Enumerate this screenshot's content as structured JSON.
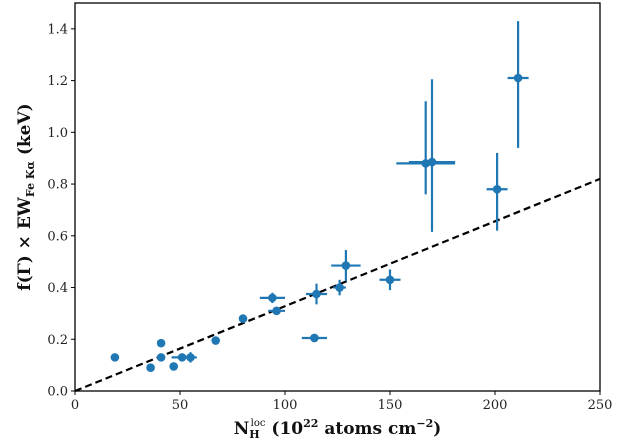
{
  "chart_data": {
    "type": "scatter",
    "xlabel": {
      "main": "N",
      "sub": "H",
      "sup": "loc",
      "paren_open": " (10",
      "exp": "22",
      "unit": " atoms cm",
      "unit_exp": "−2",
      "paren_close": ")"
    },
    "ylabel": {
      "prefix": "f(Γ) × EW",
      "sub": "Fe Kα",
      "unit": " (keV)"
    },
    "xlim": [
      0,
      250
    ],
    "ylim": [
      0,
      1.5
    ],
    "xticks": [
      0,
      50,
      100,
      150,
      200,
      250
    ],
    "yticks": [
      0.0,
      0.2,
      0.4,
      0.6,
      0.8,
      1.0,
      1.2,
      1.4
    ],
    "xtick_labels": [
      "0",
      "50",
      "100",
      "150",
      "200",
      "250"
    ],
    "ytick_labels": [
      "0.0",
      "0.2",
      "0.4",
      "0.6",
      "0.8",
      "1.0",
      "1.2",
      "1.4"
    ],
    "grid": false,
    "marker_color": "#1f77b4",
    "fit_line": {
      "style": "dashed",
      "color": "#000000",
      "x": [
        0,
        250
      ],
      "y": [
        0,
        0.82
      ]
    },
    "points": [
      {
        "x": 19,
        "y": 0.13,
        "xerr": 0,
        "yerr": [
          0,
          0
        ]
      },
      {
        "x": 36,
        "y": 0.09,
        "xerr": 0,
        "yerr": [
          0,
          0
        ]
      },
      {
        "x": 41,
        "y": 0.185,
        "xerr": 0,
        "yerr": [
          0,
          0
        ]
      },
      {
        "x": 41,
        "y": 0.13,
        "xerr": 0,
        "yerr": [
          0,
          0
        ]
      },
      {
        "x": 47,
        "y": 0.095,
        "xerr": 0,
        "yerr": [
          0,
          0
        ]
      },
      {
        "x": 51,
        "y": 0.13,
        "xerr": 5,
        "yerr": [
          0,
          0
        ]
      },
      {
        "x": 55,
        "y": 0.13,
        "xerr": 3,
        "yerr": [
          0.02,
          0.02
        ]
      },
      {
        "x": 67,
        "y": 0.195,
        "xerr": 0,
        "yerr": [
          0,
          0
        ]
      },
      {
        "x": 80,
        "y": 0.28,
        "xerr": 0,
        "yerr": [
          0,
          0
        ]
      },
      {
        "x": 94,
        "y": 0.36,
        "xerr": 6,
        "yerr": [
          0.02,
          0.02
        ]
      },
      {
        "x": 96,
        "y": 0.31,
        "xerr": 4,
        "yerr": [
          0,
          0
        ]
      },
      {
        "x": 114,
        "y": 0.205,
        "xerr": 6,
        "yerr": [
          0,
          0
        ]
      },
      {
        "x": 115,
        "y": 0.375,
        "xerr": 5,
        "yerr": [
          0.04,
          0.04
        ]
      },
      {
        "x": 126,
        "y": 0.4,
        "xerr": 3,
        "yerr": [
          0.03,
          0.03
        ]
      },
      {
        "x": 129,
        "y": 0.485,
        "xerr": 7,
        "yerr": [
          0.06,
          0.06
        ]
      },
      {
        "x": 150,
        "y": 0.43,
        "xerr": 5,
        "yerr": [
          0.04,
          0.04
        ]
      },
      {
        "x": 167,
        "y": 0.88,
        "xerr": 14,
        "yerr": [
          0.12,
          0.24
        ]
      },
      {
        "x": 170,
        "y": 0.885,
        "xerr": 11,
        "yerr": [
          0.27,
          0.32
        ]
      },
      {
        "x": 201,
        "y": 0.78,
        "xerr": 5,
        "yerr": [
          0.16,
          0.14
        ]
      },
      {
        "x": 211,
        "y": 1.21,
        "xerr": 5,
        "yerr": [
          0.27,
          0.22
        ]
      }
    ]
  }
}
